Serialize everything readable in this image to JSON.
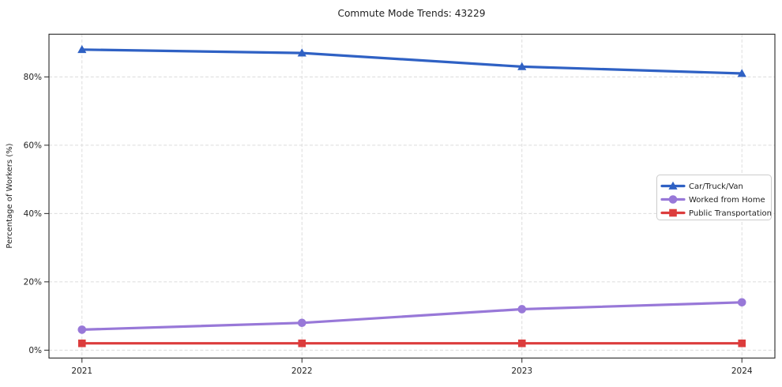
{
  "chart_data": {
    "type": "line",
    "title": "Commute Mode Trends: 43229",
    "xlabel": "",
    "ylabel": "Percentage of Workers (%)",
    "categories": [
      "2021",
      "2022",
      "2023",
      "2024"
    ],
    "series": [
      {
        "name": "Car/Truck/Van",
        "values": [
          88,
          87,
          83,
          81
        ],
        "color": "#2f61c4",
        "marker": "triangle"
      },
      {
        "name": "Worked from Home",
        "values": [
          6,
          8,
          12,
          14
        ],
        "color": "#9878d8",
        "marker": "circle"
      },
      {
        "name": "Public Transportation",
        "values": [
          2,
          2,
          2,
          2
        ],
        "color": "#dc3c3c",
        "marker": "square"
      }
    ],
    "yticks": [
      0,
      20,
      40,
      60,
      80
    ],
    "ytick_labels": [
      "0%",
      "20%",
      "40%",
      "60%",
      "80%"
    ],
    "ylim": [
      -2.3,
      92.5
    ],
    "grid": true,
    "grid_style": "dashed",
    "legend_position": "center-right",
    "line_width": 3.2,
    "background_color": "#ffffff",
    "text_color": "#1f1f1f",
    "grid_color": "#dcdcdc"
  }
}
